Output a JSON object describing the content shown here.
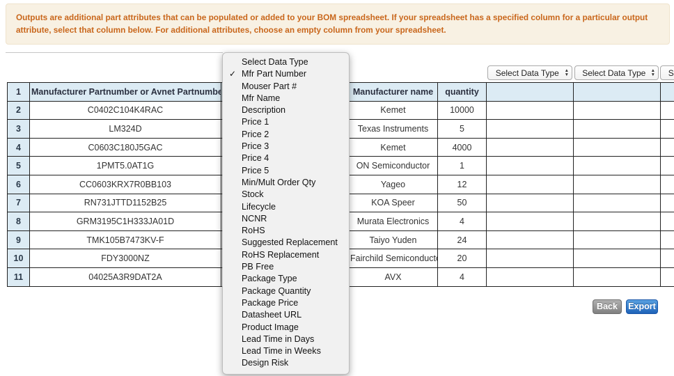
{
  "banner": {
    "text": "Outputs are additional part attributes that can be populated or added to your BOM spreadsheet. If your spreadsheet has a specified column for a particular output attribute, select that column below. For additional attributes, choose an empty column from your spreadsheet."
  },
  "outputs": {
    "selects": [
      "Select Data Type",
      "Select Data Type",
      "Select Data Type"
    ]
  },
  "icons": {
    "checkmark": "✓",
    "arrow_up": "▲",
    "arrow_down": "▼"
  },
  "menu": {
    "items": [
      {
        "label": "Select Data Type",
        "checked": false
      },
      {
        "label": "Mfr Part Number",
        "checked": true
      },
      {
        "label": "Mouser Part #",
        "checked": false
      },
      {
        "label": "Mfr Name",
        "checked": false
      },
      {
        "label": "Description",
        "checked": false
      },
      {
        "label": "Price 1",
        "checked": false
      },
      {
        "label": "Price 2",
        "checked": false
      },
      {
        "label": "Price 3",
        "checked": false
      },
      {
        "label": "Price 4",
        "checked": false
      },
      {
        "label": "Price 5",
        "checked": false
      },
      {
        "label": "Min/Mult Order Qty",
        "checked": false
      },
      {
        "label": "Stock",
        "checked": false
      },
      {
        "label": "Lifecycle",
        "checked": false
      },
      {
        "label": "NCNR",
        "checked": false
      },
      {
        "label": "RoHS",
        "checked": false
      },
      {
        "label": "Suggested Replacement",
        "checked": false
      },
      {
        "label": "RoHS Replacement",
        "checked": false
      },
      {
        "label": "PB Free",
        "checked": false
      },
      {
        "label": "Package Type",
        "checked": false
      },
      {
        "label": "Package Quantity",
        "checked": false
      },
      {
        "label": "Package Price",
        "checked": false
      },
      {
        "label": "Datasheet URL",
        "checked": false
      },
      {
        "label": "Product Image",
        "checked": false
      },
      {
        "label": "Lead Time in Days",
        "checked": false
      },
      {
        "label": "Lead Time in Weeks",
        "checked": false
      },
      {
        "label": "Design Risk",
        "checked": false
      }
    ]
  },
  "table": {
    "rows": [
      {
        "num": "1",
        "part": "Manufacturer Partnumber or Avnet Partnumber",
        "mfr": "Manufacturer name",
        "qty": "quantity"
      },
      {
        "num": "2",
        "part": "C0402C104K4RAC",
        "mfr": "Kemet",
        "qty": "10000"
      },
      {
        "num": "3",
        "part": "LM324D",
        "mfr": "Texas Instruments",
        "qty": "5"
      },
      {
        "num": "4",
        "part": "C0603C180J5GAC",
        "mfr": "Kemet",
        "qty": "4000"
      },
      {
        "num": "5",
        "part": "1PMT5.0AT1G",
        "mfr": "ON Semiconductor",
        "qty": "1"
      },
      {
        "num": "6",
        "part": "CC0603KRX7R0BB103",
        "mfr": "Yageo",
        "qty": "12"
      },
      {
        "num": "7",
        "part": "RN731JTTD1152B25",
        "mfr": "KOA Speer",
        "qty": "50"
      },
      {
        "num": "8",
        "part": "GRM3195C1H333JA01D",
        "mfr": "Murata Electronics",
        "qty": "4"
      },
      {
        "num": "9",
        "part": "TMK105B7473KV-F",
        "mfr": "Taiyo Yuden",
        "qty": "24"
      },
      {
        "num": "10",
        "part": "FDY3000NZ",
        "mfr": "Fairchild Semiconductor",
        "qty": "20"
      },
      {
        "num": "11",
        "part": "04025A3R9DAT2A",
        "mfr": "AVX",
        "qty": "4"
      }
    ]
  },
  "buttons": {
    "back": "Back",
    "export": "Export"
  },
  "colors": {
    "banner_bg": "#f8f1e3",
    "banner_text": "#c9671c",
    "header_bg": "#dcebf4",
    "export_blue": "#1e62b8",
    "back_gray": "#808080"
  }
}
